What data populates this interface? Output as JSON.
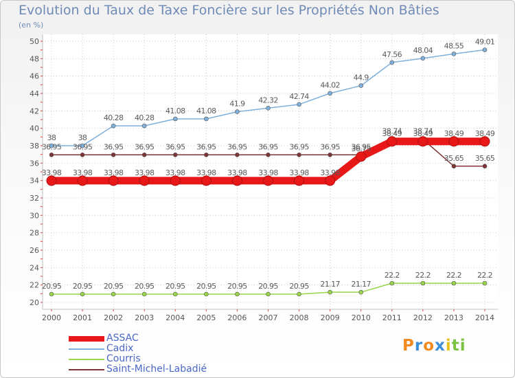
{
  "chart_data": {
    "type": "line",
    "title": "Evolution du Taux de Taxe Foncière sur les Propriétés Non Bâties",
    "ylabel": "(en %)",
    "xlabel": "",
    "ylim": [
      20,
      50
    ],
    "yticks": [
      20,
      22,
      24,
      26,
      28,
      30,
      32,
      34,
      36,
      38,
      40,
      42,
      44,
      46,
      48,
      50
    ],
    "x": [
      "2000",
      "2001",
      "2002",
      "2003",
      "2004",
      "2005",
      "2006",
      "2007",
      "2008",
      "2009",
      "2010",
      "2011",
      "2012",
      "2013",
      "2014"
    ],
    "series": [
      {
        "name": "Saint-Michel-Labadié",
        "color": "#7f3535",
        "values": [
          36.95,
          36.95,
          36.95,
          36.95,
          36.95,
          36.95,
          36.95,
          36.95,
          36.95,
          36.95,
          36.95,
          38.74,
          38.74,
          35.65,
          35.65
        ],
        "labels": [
          "36.95",
          "36.95",
          "36.95",
          "36.95",
          "36.95",
          "36.95",
          "36.95",
          "36.95",
          "36.95",
          "36.95",
          "36.95",
          "38.74",
          "38.74",
          "35.65",
          "35.65"
        ]
      },
      {
        "name": "Courris",
        "color": "#9ad44a",
        "values": [
          20.95,
          20.95,
          20.95,
          20.95,
          20.95,
          20.95,
          20.95,
          20.95,
          20.95,
          21.17,
          21.17,
          22.2,
          22.2,
          22.2,
          22.2
        ],
        "labels": [
          "20.95",
          "20.95",
          "20.95",
          "20.95",
          "20.95",
          "20.95",
          "20.95",
          "20.95",
          "20.95",
          "21.17",
          "21.17",
          "22.2",
          "22.2",
          "22.2",
          "22.2"
        ]
      },
      {
        "name": "Cadix",
        "color": "#7fb0dc",
        "values": [
          38,
          38,
          40.28,
          40.28,
          41.08,
          41.08,
          41.9,
          42.32,
          42.74,
          44.02,
          44.9,
          47.56,
          48.04,
          48.55,
          49.01
        ],
        "labels": [
          "38",
          "38",
          "40.28",
          "40.28",
          "41.08",
          "41.08",
          "41.9",
          "42.32",
          "42.74",
          "44.02",
          "44.9",
          "47.56",
          "48.04",
          "48.55",
          "49.01"
        ]
      },
      {
        "name": "ASSAC",
        "color": "#e81818",
        "values": [
          33.98,
          33.98,
          33.98,
          33.98,
          33.98,
          33.98,
          33.98,
          33.98,
          33.98,
          33.98,
          36.75,
          38.49,
          38.49,
          38.49,
          38.49
        ],
        "labels": [
          "33.98",
          "33.98",
          "33.98",
          "33.98",
          "33.98",
          "33.98",
          "33.98",
          "33.98",
          "33.98",
          "33.98",
          "36.75",
          "38.49",
          "38.49",
          "38.49",
          "38.49"
        ]
      }
    ],
    "legend": [
      "ASSAC",
      "Cadix",
      "Courris",
      "Saint-Michel-Labadié"
    ],
    "legend_position": "bottom-left"
  },
  "logo": {
    "letters": [
      "P",
      "r",
      "o",
      "x",
      "i",
      "t",
      "i"
    ],
    "colors": [
      "#f08a1e",
      "#3b8fd8",
      "#f08a1e",
      "#3b8fd8",
      "#e8c31e",
      "#7cc242",
      "#7cc242"
    ]
  },
  "colors": {
    "title": "#6f8ab6",
    "axis": "#c0c0c0",
    "grid": "#c4c4c4",
    "tick_text": "#555555"
  }
}
